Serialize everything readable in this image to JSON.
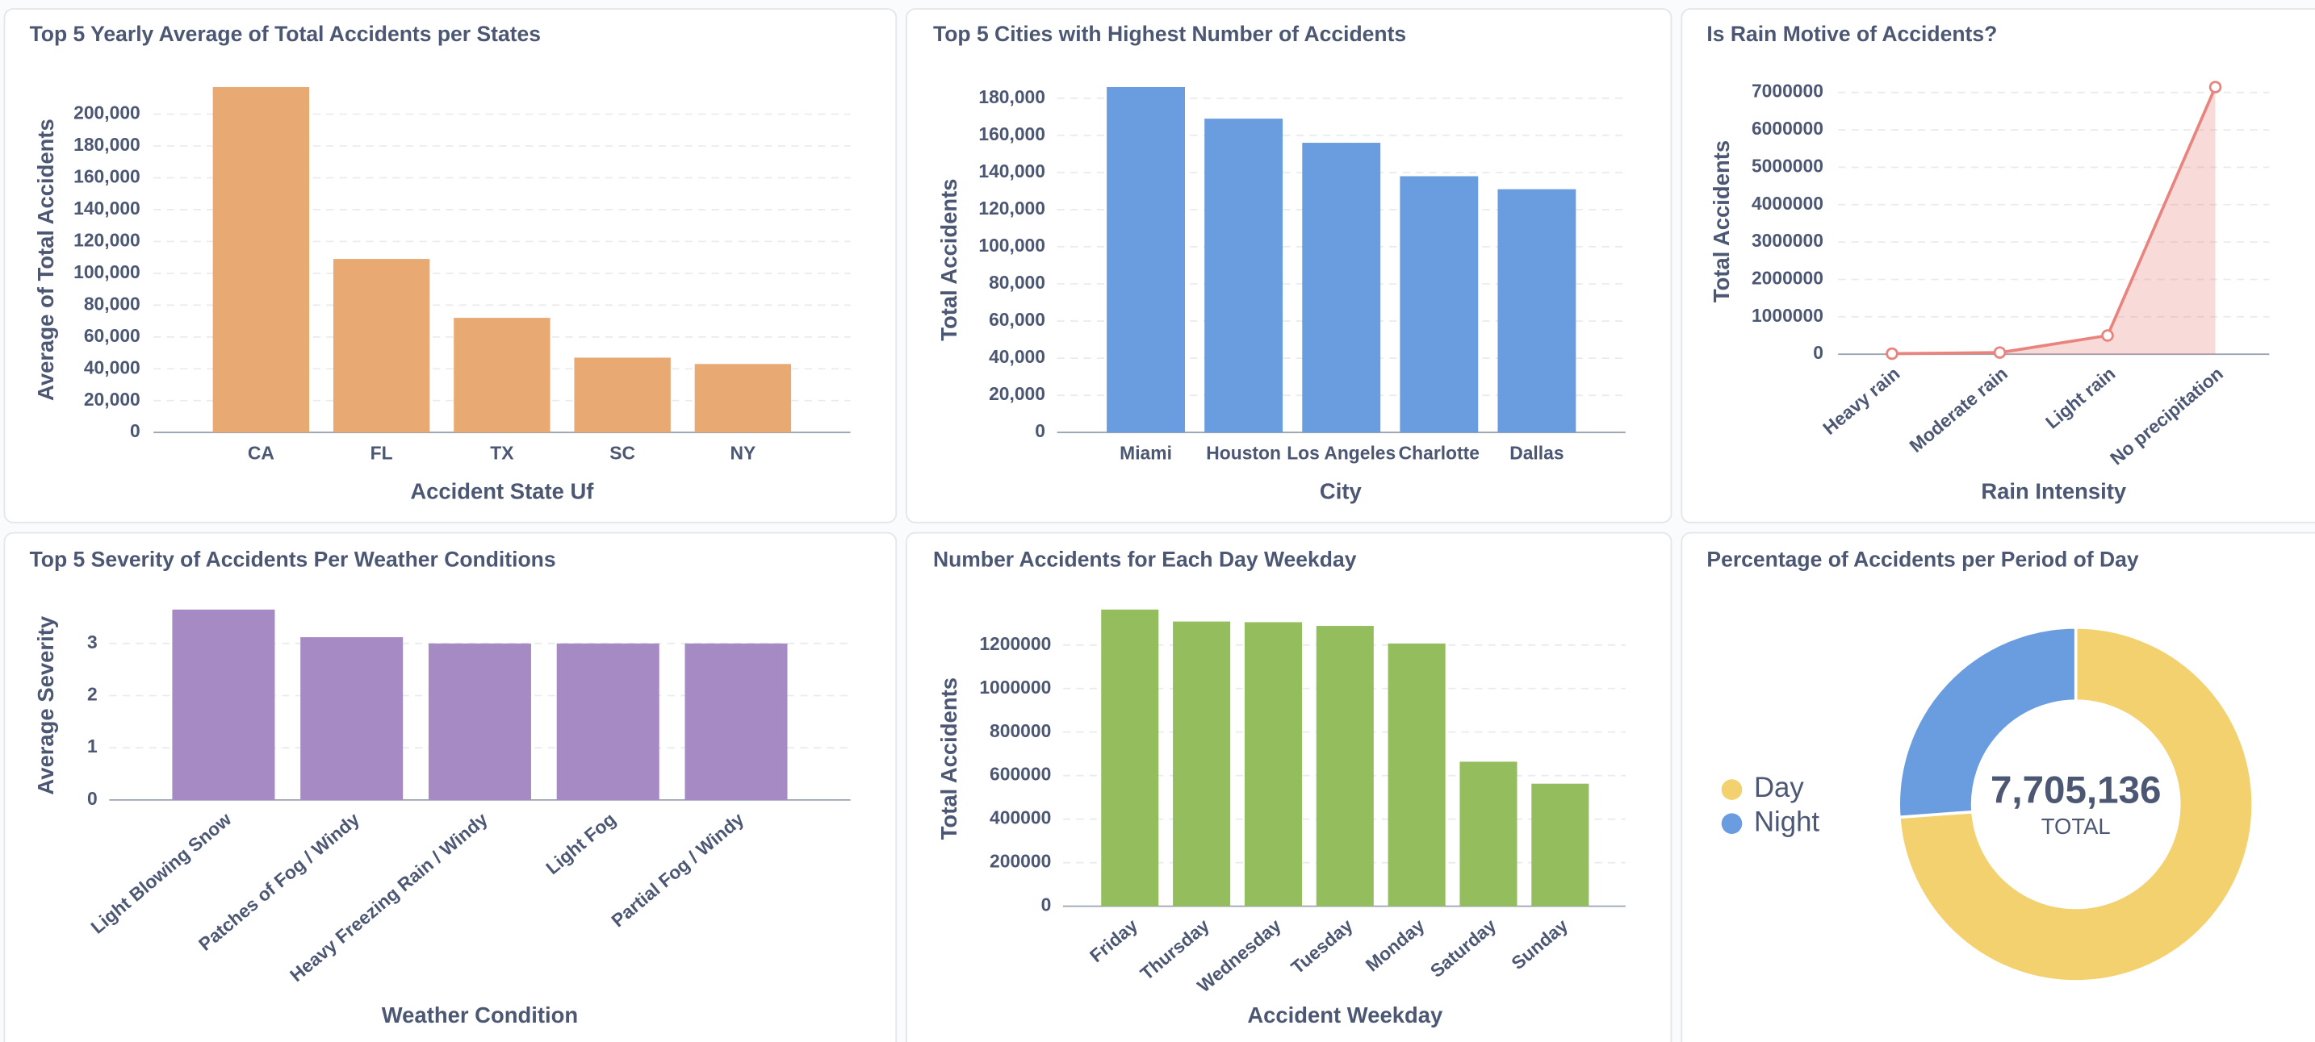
{
  "chart_data": [
    {
      "type": "bar",
      "title": "Top 5 Yearly Average of Total Accidents per States",
      "x_label": "Accident State Uf",
      "y_label": "Average of Total Accidents",
      "categories": [
        "CA",
        "FL",
        "TX",
        "SC",
        "NY"
      ],
      "values": [
        217000,
        109000,
        72000,
        47000,
        43000
      ],
      "color": "#e8a972",
      "ylim": [
        0,
        217000
      ],
      "yticks": [
        0,
        {
          "value": 20000,
          "label": "20,000"
        },
        {
          "value": 40000,
          "label": "40,000"
        },
        {
          "value": 60000,
          "label": "60,000"
        },
        {
          "value": 80000,
          "label": "80,000"
        },
        {
          "value": 100000,
          "label": "100,000"
        },
        {
          "value": 120000,
          "label": "120,000"
        },
        {
          "value": 140000,
          "label": "140,000"
        },
        {
          "value": 160000,
          "label": "160,000"
        },
        {
          "value": 180000,
          "label": "180,000"
        },
        {
          "value": 200000,
          "label": "200,000"
        }
      ],
      "grid": true
    },
    {
      "type": "bar",
      "title": "Top 5 Cities with Highest Number of Accidents",
      "x_label": "City",
      "y_label": "Total Accidents",
      "categories": [
        "Miami",
        "Houston",
        "Los Angeles",
        "Charlotte",
        "Dallas"
      ],
      "values": [
        186000,
        169000,
        156000,
        138000,
        131000
      ],
      "color": "#6a9ddf",
      "ylim": [
        0,
        186000
      ],
      "yticks": [
        0,
        {
          "value": 20000,
          "label": "20,000"
        },
        {
          "value": 40000,
          "label": "40,000"
        },
        {
          "value": 60000,
          "label": "60,000"
        },
        {
          "value": 80000,
          "label": "80,000"
        },
        {
          "value": 100000,
          "label": "100,000"
        },
        {
          "value": 120000,
          "label": "120,000"
        },
        {
          "value": 140000,
          "label": "140,000"
        },
        {
          "value": 160000,
          "label": "160,000"
        },
        {
          "value": 180000,
          "label": "180,000"
        }
      ],
      "grid": true
    },
    {
      "type": "line",
      "title": "Is Rain Motive of Accidents?",
      "x_label": "Rain Intensity",
      "y_label": "Total Accidents",
      "categories": [
        "Heavy rain",
        "Moderate rain",
        "Light rain",
        "No precipitation"
      ],
      "values": [
        15000,
        45000,
        500000,
        7145000
      ],
      "color": "#e8837d",
      "ylim": [
        0,
        7145000
      ],
      "yticks": [
        0,
        1000000,
        2000000,
        3000000,
        4000000,
        5000000,
        6000000,
        7000000
      ],
      "grid": true
    },
    {
      "type": "bar",
      "title": "Top 5 Severity of Accidents Per Weather Conditions",
      "x_label": "Weather Condition",
      "y_label": "Average Severity",
      "categories": [
        "Light Blowing Snow",
        "Patches of Fog / Windy",
        "Heavy Freezing Rain / Windy",
        "Light Fog",
        "Partial Fog / Windy"
      ],
      "values": [
        3.65,
        3.12,
        3,
        3,
        3
      ],
      "color": "#a68ac3",
      "ylim": [
        0,
        3.65
      ],
      "yticks": [
        0,
        1,
        2,
        3
      ],
      "grid": true
    },
    {
      "type": "bar",
      "title": "Number Accidents for Each Day Weekday",
      "x_label": "Accident Weekday",
      "y_label": "Total Accidents",
      "categories": [
        "Friday",
        "Thursday",
        "Wednesday",
        "Tuesday",
        "Monday",
        "Saturday",
        "Sunday"
      ],
      "values": [
        1363000,
        1308000,
        1305000,
        1288000,
        1207000,
        664000,
        563000
      ],
      "color": "#94bd5e",
      "ylim": [
        0,
        1363000
      ],
      "yticks": [
        0,
        200000,
        400000,
        600000,
        800000,
        1000000,
        1200000
      ],
      "grid": true
    },
    {
      "type": "pie",
      "title": "Percentage of Accidents per Period of Day",
      "categories": [
        "Day",
        "Night"
      ],
      "values": [
        5690000,
        2015136
      ],
      "colors": [
        "#f2d16e",
        "#6a9ddf"
      ],
      "total_label": "7,705,136",
      "total_caption": "TOTAL",
      "legend": "left"
    }
  ]
}
